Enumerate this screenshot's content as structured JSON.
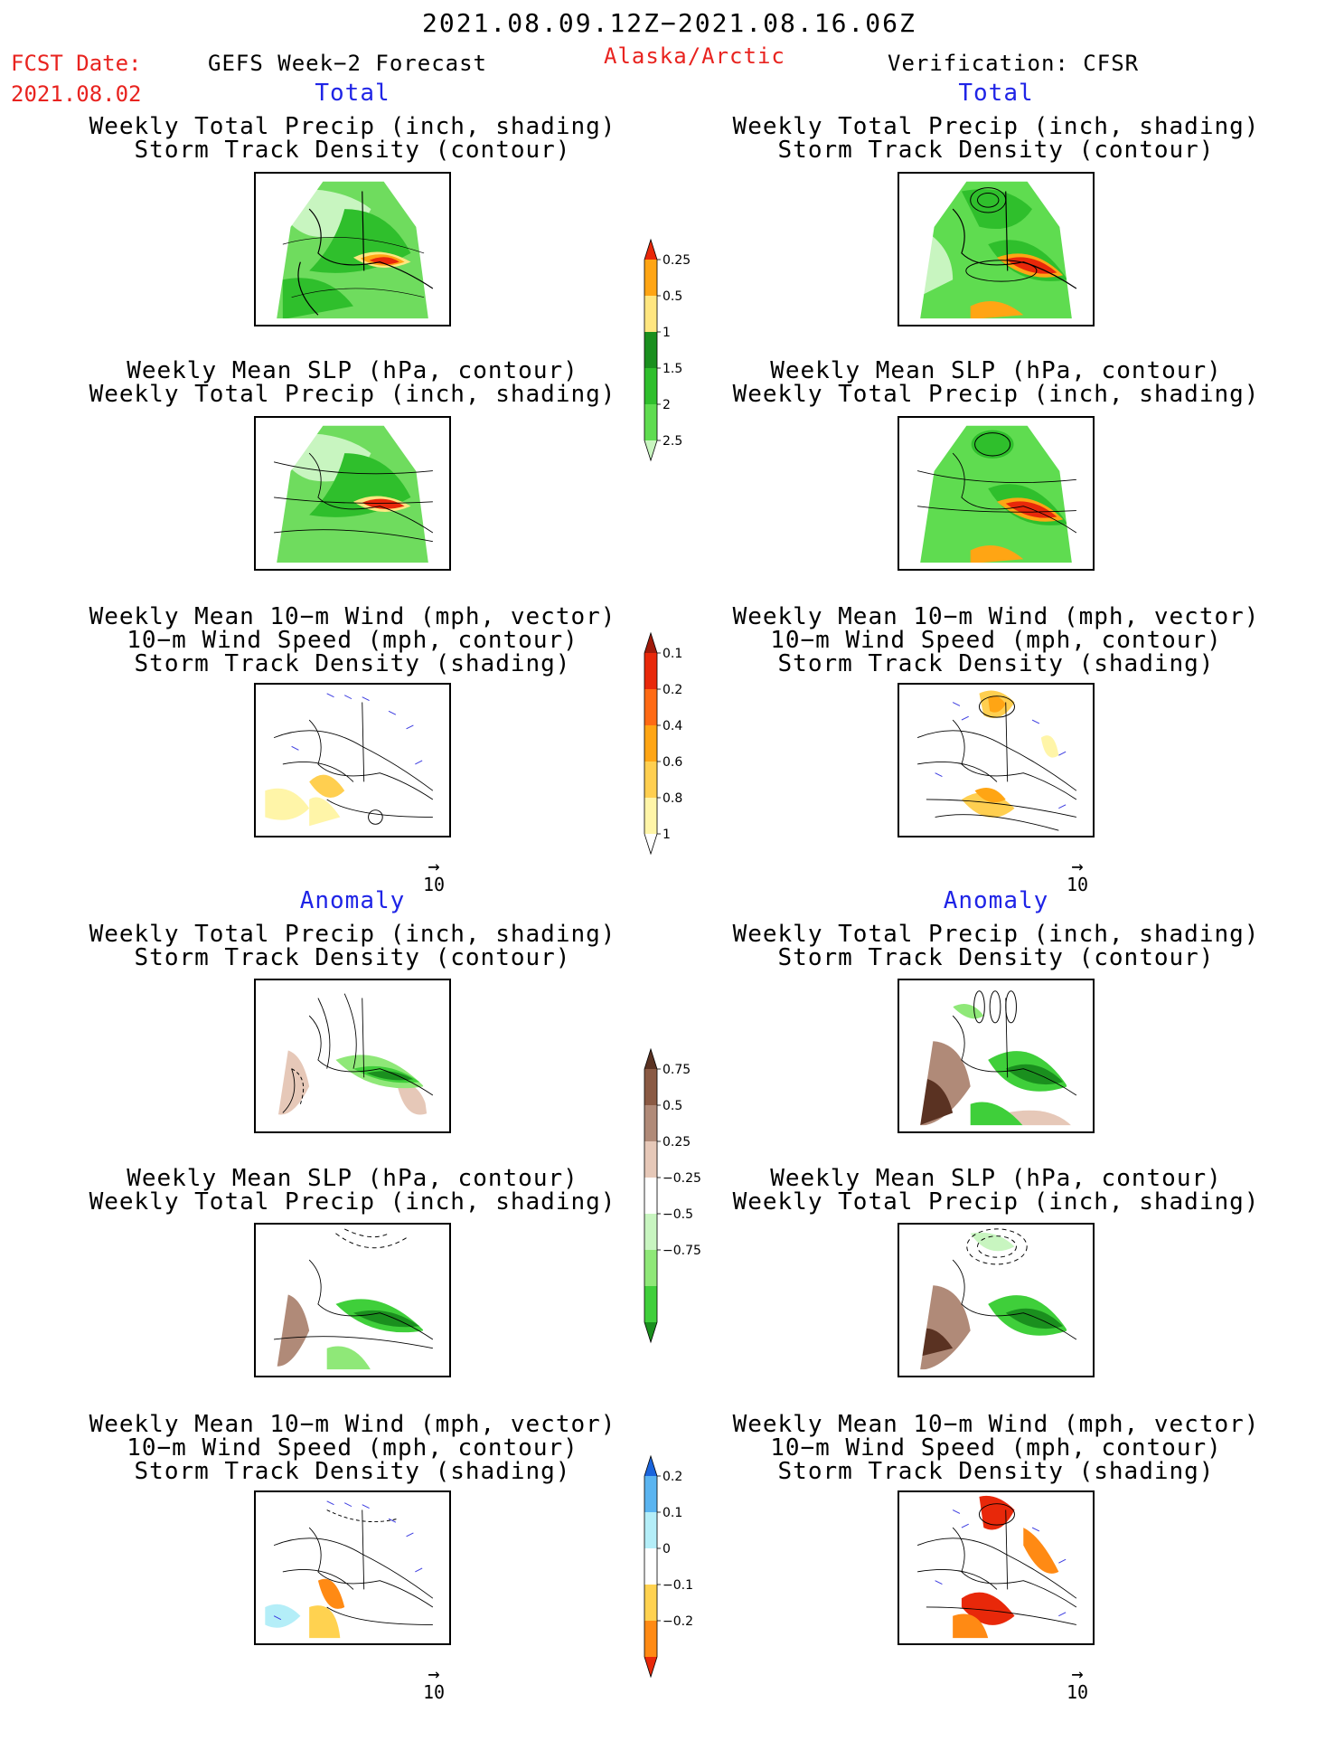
{
  "header": {
    "period": "2021.08.09.12Z−2021.08.16.06Z",
    "fcst_label": "FCST Date:",
    "fcst_date": "2021.08.02",
    "left_title": "GEFS Week−2 Forecast",
    "region": "Alaska/Arctic",
    "right_title": "Verification: CFSR"
  },
  "sections": {
    "total": "Total",
    "anomaly": "Anomaly"
  },
  "panel_titles": {
    "precip_storm": [
      "Weekly Total Precip (inch, shading)",
      "Storm Track Density (contour)"
    ],
    "slp_precip": [
      "Weekly Mean SLP (hPa, contour)",
      "Weekly Total Precip (inch, shading)"
    ],
    "wind_storm": [
      "Weekly Mean 10−m Wind (mph, vector)",
      "10−m Wind Speed (mph, contour)",
      "Storm Track Density (shading)"
    ]
  },
  "vector_reference": {
    "value": "10",
    "arrow": "→"
  },
  "colorbars": {
    "total_precip": {
      "labels": [
        "0.25",
        "0.5",
        "1",
        "1.5",
        "2",
        "2.5"
      ],
      "colors": [
        "#c8f5c0",
        "#5fdc50",
        "#2fbf2c",
        "#1a8f1e",
        "#ffe680",
        "#ffa514",
        "#e8280a"
      ]
    },
    "total_storm": {
      "labels": [
        "0.1",
        "0.2",
        "0.4",
        "0.6",
        "0.8",
        "1"
      ],
      "colors": [
        "#ffffff",
        "#fff5a8",
        "#ffcf50",
        "#ffa514",
        "#ff6a14",
        "#e8280a",
        "#a01a0a"
      ]
    },
    "anom_precip": {
      "labels": [
        "0.75",
        "0.5",
        "0.25",
        "−0.25",
        "−0.5",
        "−0.75"
      ],
      "colors": [
        "#1a8f1e",
        "#3fcf3a",
        "#8fe878",
        "#c8f5c0",
        "#ffffff",
        "#e6c8b8",
        "#b08a78",
        "#8a5a44",
        "#5a3222"
      ]
    },
    "anom_storm": {
      "labels": [
        "0.2",
        "0.1",
        "0",
        "−0.1",
        "−0.2"
      ],
      "colors": [
        "#e8280a",
        "#ff8a14",
        "#ffd250",
        "#ffffff",
        "#b4eef8",
        "#5ab4f0",
        "#1a64dc"
      ]
    }
  }
}
